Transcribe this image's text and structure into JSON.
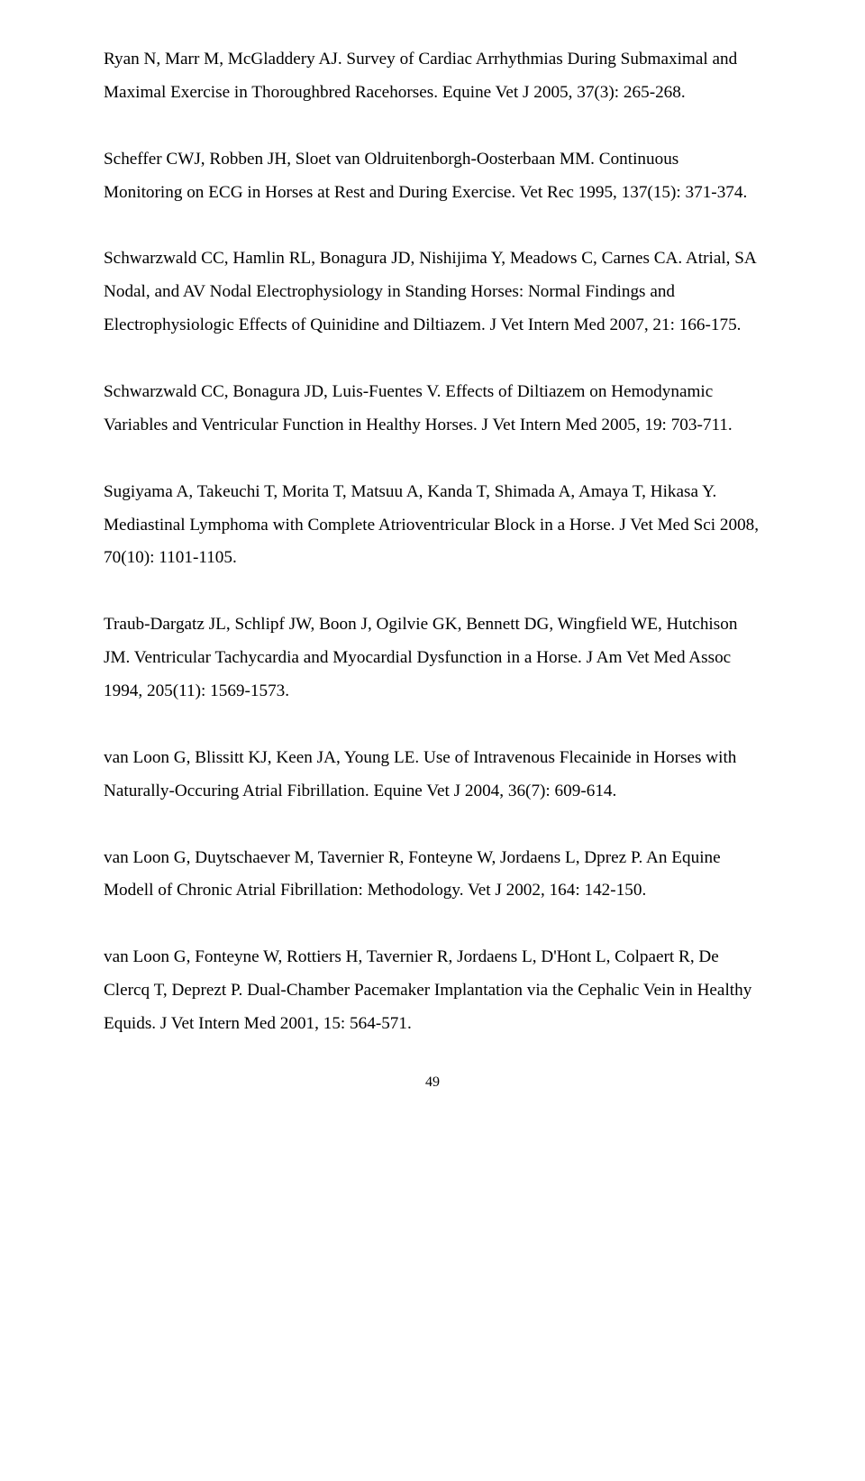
{
  "references": [
    "Ryan N, Marr M, McGladdery AJ. Survey of Cardiac Arrhythmias During Submaximal and Maximal Exercise in Thoroughbred Racehorses. Equine Vet J 2005, 37(3): 265-268.",
    "Scheffer CWJ, Robben JH, Sloet van Oldruitenborgh-Oosterbaan MM. Continuous Monitoring on ECG in Horses at Rest and During Exercise. Vet Rec 1995, 137(15): 371-374.",
    "Schwarzwald CC, Hamlin RL, Bonagura JD, Nishijima Y, Meadows C, Carnes CA. Atrial, SA Nodal, and AV Nodal Electrophysiology in Standing Horses: Normal Findings and Electrophysiologic Effects of Quinidine and Diltiazem. J Vet Intern Med 2007, 21: 166-175.",
    "Schwarzwald CC, Bonagura JD, Luis-Fuentes V. Effects of Diltiazem on Hemodynamic Variables and Ventricular Function in Healthy Horses. J Vet Intern Med 2005, 19: 703-711.",
    "Sugiyama A, Takeuchi T, Morita T, Matsuu A, Kanda T, Shimada A, Amaya T, Hikasa Y. Mediastinal Lymphoma with Complete Atrioventricular Block in a Horse. J Vet Med Sci 2008, 70(10): 1101-1105.",
    "Traub-Dargatz JL, Schlipf JW, Boon J, Ogilvie GK, Bennett DG, Wingfield WE, Hutchison JM. Ventricular Tachycardia and Myocardial Dysfunction in a Horse. J Am Vet Med Assoc 1994, 205(11): 1569-1573.",
    "van Loon G, Blissitt KJ, Keen JA, Young LE. Use of Intravenous Flecainide in Horses with Naturally-Occuring Atrial Fibrillation. Equine Vet J 2004, 36(7): 609-614.",
    "van Loon G, Duytschaever M, Tavernier R, Fonteyne W, Jordaens L, Dprez P. An Equine Modell of Chronic Atrial Fibrillation: Methodology. Vet J 2002, 164: 142-150.",
    "van Loon G, Fonteyne W, Rottiers H, Tavernier R, Jordaens L, D'Hont L, Colpaert R, De Clercq T, Deprezt P. Dual-Chamber Pacemaker Implantation via the Cephalic Vein in Healthy Equids. J Vet Intern Med 2001, 15: 564-571."
  ],
  "page_number": "49"
}
